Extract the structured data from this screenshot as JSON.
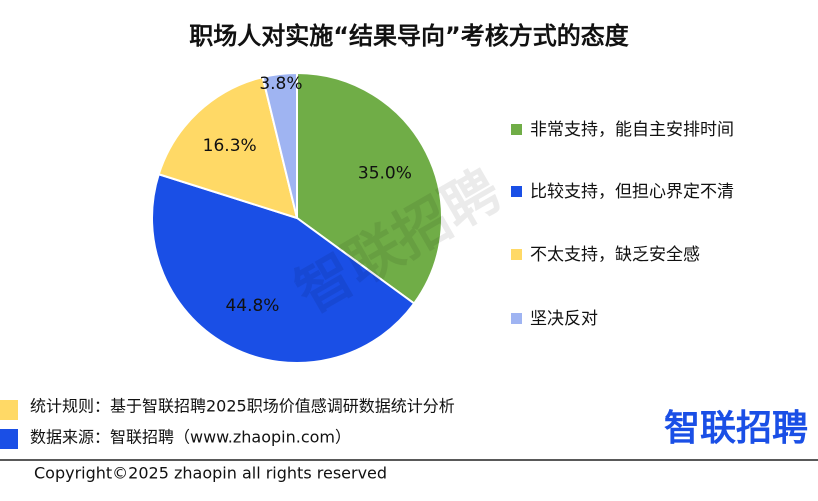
{
  "chart_data": {
    "type": "pie",
    "title": "职场人对实施“结果导向”考核方式的态度",
    "categories": [
      "非常支持，能自主安排时间",
      "比较支持，但担心界定不清",
      "不太支持，缺乏安全感",
      "坚决反对"
    ],
    "values": [
      35.0,
      44.8,
      16.3,
      3.8
    ],
    "value_labels": [
      "35.0%",
      "44.8%",
      "16.3%",
      "3.8%"
    ],
    "colors": [
      "#70ad47",
      "#1a4fe6",
      "#ffd966",
      "#9fb4f2"
    ]
  },
  "watermark": "智联招聘",
  "footer": {
    "notes": [
      "统计规则：基于智联招聘2025职场价值感调研数据统计分析",
      "数据来源：智联招聘（www.zhaopin.com）"
    ],
    "note_colors": [
      "#ffd966",
      "#1a4fe6"
    ],
    "logo": "智联招聘",
    "copyright": "Copyright©2025 zhaopin all rights reserved"
  }
}
